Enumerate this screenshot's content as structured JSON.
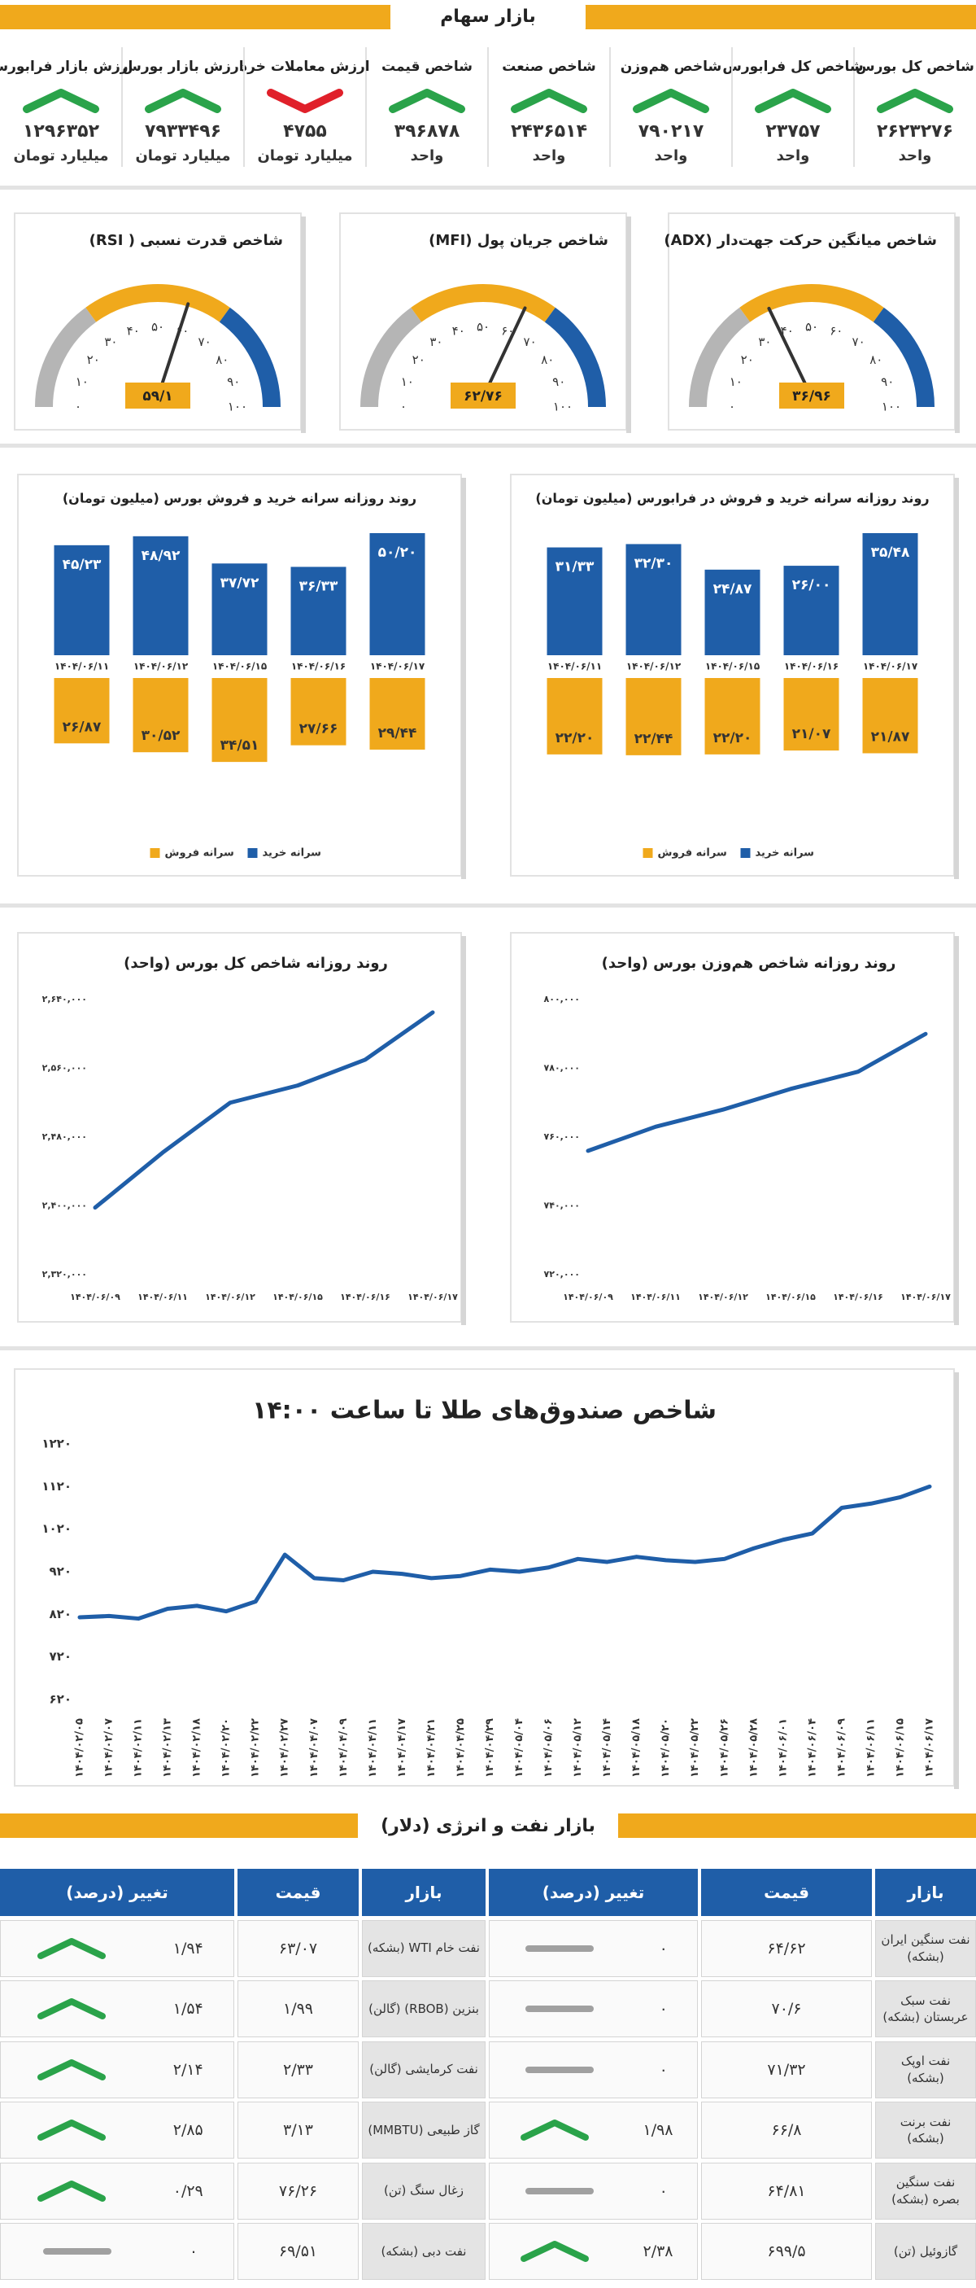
{
  "stock_market": {
    "title": "بازار سهام",
    "items": [
      {
        "title": "شاخص کل بورس",
        "value": "۲۶۲۳۲۷۶",
        "unit": "واحد",
        "trend": "up"
      },
      {
        "title": "شاخص کل فرابورس",
        "value": "۲۳۷۵۷",
        "unit": "واحد",
        "trend": "up"
      },
      {
        "title": "شاخص هم‌وزن",
        "value": "۷۹۰۲۱۷",
        "unit": "واحد",
        "trend": "up"
      },
      {
        "title": "شاخص صنعت",
        "value": "۲۴۳۶۵۱۴",
        "unit": "واحد",
        "trend": "up"
      },
      {
        "title": "شاخص قیمت",
        "value": "۳۹۶۸۷۸",
        "unit": "واحد",
        "trend": "up"
      },
      {
        "title": "ارزش معاملات خرد",
        "value": "۴۷۵۵",
        "unit": "میلیارد تومان",
        "trend": "down"
      },
      {
        "title": "ارزش بازار بورس",
        "value": "۷۹۳۳۴۹۶",
        "unit": "میلیارد تومان",
        "trend": "up"
      },
      {
        "title": "ارزش بازار فرابورس",
        "value": "۱۲۹۶۳۵۲",
        "unit": "میلیارد تومان",
        "trend": "up"
      }
    ]
  },
  "chart_data": [
    {
      "type": "gauge",
      "title": "شاخص میانگین حرکت جهت‌دار (ADX)",
      "value": 36.96,
      "value_label": "۳۶/۹۶",
      "color": "#f0a91c",
      "ylim": [
        0,
        100
      ],
      "yticks": [
        {
          "value": 0,
          "label": "۰"
        },
        {
          "value": 10,
          "label": "۱۰"
        },
        {
          "value": 20,
          "label": "۲۰"
        },
        {
          "value": 30,
          "label": "۳۰"
        },
        {
          "value": 40,
          "label": "۴۰"
        },
        {
          "value": 50,
          "label": "۵۰"
        },
        {
          "value": 60,
          "label": "۶۰"
        },
        {
          "value": 70,
          "label": "۷۰"
        },
        {
          "value": 80,
          "label": "۸۰"
        },
        {
          "value": 90,
          "label": "۹۰"
        },
        {
          "value": 100,
          "label": "۱۰۰"
        }
      ],
      "zones": [
        {
          "from": 0,
          "to": 30,
          "color": "#b5b5b5"
        },
        {
          "from": 30,
          "to": 70,
          "color": "#f0a91c"
        },
        {
          "from": 70,
          "to": 100,
          "color": "#1f5ea8"
        }
      ]
    },
    {
      "type": "gauge",
      "title": "شاخص جریان پول (MFI)",
      "value": 62.76,
      "value_label": "۶۲/۷۶",
      "color": "#f0a91c",
      "ylim": [
        0,
        100
      ],
      "yticks": [
        {
          "value": 0,
          "label": "۰"
        },
        {
          "value": 10,
          "label": "۱۰"
        },
        {
          "value": 20,
          "label": "۲۰"
        },
        {
          "value": 30,
          "label": "۳۰"
        },
        {
          "value": 40,
          "label": "۴۰"
        },
        {
          "value": 50,
          "label": "۵۰"
        },
        {
          "value": 60,
          "label": "۶۰"
        },
        {
          "value": 70,
          "label": "۷۰"
        },
        {
          "value": 80,
          "label": "۸۰"
        },
        {
          "value": 90,
          "label": "۹۰"
        },
        {
          "value": 100,
          "label": "۱۰۰"
        }
      ],
      "zones": [
        {
          "from": 0,
          "to": 30,
          "color": "#b5b5b5"
        },
        {
          "from": 30,
          "to": 70,
          "color": "#f0a91c"
        },
        {
          "from": 70,
          "to": 100,
          "color": "#1f5ea8"
        }
      ]
    },
    {
      "type": "gauge",
      "title": "شاخص قدرت نسبی ( RSI)",
      "value": 59.1,
      "value_label": "۵۹/۱",
      "color": "#f0a91c",
      "ylim": [
        0,
        100
      ],
      "yticks": [
        {
          "value": 0,
          "label": "۰"
        },
        {
          "value": 10,
          "label": "۱۰"
        },
        {
          "value": 20,
          "label": "۲۰"
        },
        {
          "value": 30,
          "label": "۳۰"
        },
        {
          "value": 40,
          "label": "۴۰"
        },
        {
          "value": 50,
          "label": "۵۰"
        },
        {
          "value": 60,
          "label": "۶۰"
        },
        {
          "value": 70,
          "label": "۷۰"
        },
        {
          "value": 80,
          "label": "۸۰"
        },
        {
          "value": 90,
          "label": "۹۰"
        },
        {
          "value": 100,
          "label": "۱۰۰"
        }
      ],
      "zones": [
        {
          "from": 0,
          "to": 30,
          "color": "#b5b5b5"
        },
        {
          "from": 30,
          "to": 70,
          "color": "#f0a91c"
        },
        {
          "from": 70,
          "to": 100,
          "color": "#1f5ea8"
        }
      ]
    },
    {
      "type": "bar",
      "title": "روند روزانه سرانه خرید و فروش در فرابورس (میلیون تومان)",
      "categories": [
        "۱۴۰۴/۰۶/۱۱",
        "۱۴۰۴/۰۶/۱۲",
        "۱۴۰۴/۰۶/۱۵",
        "۱۴۰۴/۰۶/۱۶",
        "۱۴۰۴/۰۶/۱۷"
      ],
      "series": [
        {
          "name": "سرانه خرید",
          "color": "#1f5ea8",
          "values": [
            31.33,
            32.3,
            24.87,
            26,
            35.48
          ],
          "value_labels": [
            "۳۱/۳۳",
            "۳۲/۳۰",
            "۲۴/۸۷",
            "۲۶/۰۰",
            "۳۵/۴۸"
          ]
        },
        {
          "name": "سرانه فروش",
          "color": "#f0a91c",
          "values": [
            22.2,
            22.44,
            22.2,
            21.07,
            21.87
          ],
          "value_labels": [
            "۲۲/۲۰",
            "۲۲/۴۴",
            "۲۲/۲۰",
            "۲۱/۰۷",
            "۲۱/۸۷"
          ]
        }
      ],
      "legend": "bottom"
    },
    {
      "type": "bar",
      "title": "روند روزانه سرانه خرید و فروش بورس (میلیون تومان)",
      "categories": [
        "۱۴۰۴/۰۶/۱۱",
        "۱۴۰۴/۰۶/۱۲",
        "۱۴۰۴/۰۶/۱۵",
        "۱۴۰۴/۰۶/۱۶",
        "۱۴۰۴/۰۶/۱۷"
      ],
      "series": [
        {
          "name": "سرانه خرید",
          "color": "#1f5ea8",
          "values": [
            45.23,
            48.92,
            37.72,
            36.33,
            50.2
          ],
          "value_labels": [
            "۴۵/۲۳",
            "۴۸/۹۲",
            "۳۷/۷۲",
            "۳۶/۳۳",
            "۵۰/۲۰"
          ]
        },
        {
          "name": "سرانه فروش",
          "color": "#f0a91c",
          "values": [
            26.87,
            30.52,
            34.51,
            27.66,
            29.44
          ],
          "value_labels": [
            "۲۶/۸۷",
            "۳۰/۵۲",
            "۳۴/۵۱",
            "۲۷/۶۶",
            "۲۹/۴۴"
          ]
        }
      ],
      "legend": "bottom"
    },
    {
      "type": "line",
      "title": "روند روزانه شاخص هم‌وزن بورس (واحد)",
      "color": "#1f5ea8",
      "categories": [
        "۱۴۰۴/۰۶/۰۹",
        "۱۴۰۴/۰۶/۱۱",
        "۱۴۰۴/۰۶/۱۲",
        "۱۴۰۴/۰۶/۱۵",
        "۱۴۰۴/۰۶/۱۶",
        "۱۴۰۴/۰۶/۱۷"
      ],
      "values": [
        756000,
        763000,
        768000,
        774000,
        779000,
        790000
      ],
      "ylim": [
        720000,
        800000
      ],
      "yticks": [
        {
          "value": 720000,
          "label": "۷۲۰,۰۰۰"
        },
        {
          "value": 740000,
          "label": "۷۴۰,۰۰۰"
        },
        {
          "value": 760000,
          "label": "۷۶۰,۰۰۰"
        },
        {
          "value": 780000,
          "label": "۷۸۰,۰۰۰"
        },
        {
          "value": 800000,
          "label": "۸۰۰,۰۰۰"
        }
      ]
    },
    {
      "type": "line",
      "title": "روند روزانه شاخص کل بورس (واحد)",
      "color": "#1f5ea8",
      "categories": [
        "۱۴۰۴/۰۶/۰۹",
        "۱۴۰۴/۰۶/۱۱",
        "۱۴۰۴/۰۶/۱۲",
        "۱۴۰۴/۰۶/۱۵",
        "۱۴۰۴/۰۶/۱۶",
        "۱۴۰۴/۰۶/۱۷"
      ],
      "values": [
        2398000,
        2462000,
        2520000,
        2540000,
        2570000,
        2625000
      ],
      "ylim": [
        2320000,
        2640000
      ],
      "yticks": [
        {
          "value": 2320000,
          "label": "۲,۳۲۰,۰۰۰"
        },
        {
          "value": 2400000,
          "label": "۲,۴۰۰,۰۰۰"
        },
        {
          "value": 2480000,
          "label": "۲,۴۸۰,۰۰۰"
        },
        {
          "value": 2560000,
          "label": "۲,۵۶۰,۰۰۰"
        },
        {
          "value": 2640000,
          "label": "۲,۶۴۰,۰۰۰"
        }
      ]
    },
    {
      "type": "line",
      "title": "شاخص صندوق‌های طلا تا ساعت ۱۴:۰۰",
      "color": "#1f5ea8",
      "categories": [
        "۱۴۰۴/۰۲/۰۵",
        "۱۴۰۴/۰۲/۰۷",
        "۱۴۰۴/۰۲/۱۱",
        "۱۴۰۴/۰۲/۱۳",
        "۱۴۰۴/۰۲/۱۸",
        "۱۴۰۴/۰۲/۲۰",
        "۱۴۰۴/۰۲/۲۲",
        "۱۴۰۴/۰۲/۲۷",
        "۱۴۰۴/۰۴/۰۷",
        "۱۴۰۴/۰۴/۰۹",
        "۱۴۰۴/۰۴/۱۱",
        "۱۴۰۴/۰۴/۱۷",
        "۱۴۰۴/۰۴/۲۱",
        "۱۴۰۴/۰۴/۲۵",
        "۱۴۰۴/۰۴/۲۹",
        "۱۴۰۴/۰۵/۰۴",
        "۱۴۰۴/۰۵/۰۶",
        "۱۴۰۴/۰۵/۱۲",
        "۱۴۰۴/۰۵/۱۴",
        "۱۴۰۴/۰۵/۱۸",
        "۱۴۰۴/۰۵/۲۰",
        "۱۴۰۴/۰۵/۲۲",
        "۱۴۰۴/۰۵/۲۶",
        "۱۴۰۴/۰۵/۲۸",
        "۱۴۰۴/۰۶/۰۱",
        "۱۴۰۴/۰۶/۰۴",
        "۱۴۰۴/۰۶/۰۹",
        "۱۴۰۴/۰۶/۱۱",
        "۱۴۰۴/۰۶/۱۵",
        "۱۴۰۴/۰۶/۱۷"
      ],
      "values": [
        813,
        816,
        810,
        833,
        840,
        827,
        850,
        960,
        905,
        900,
        920,
        915,
        905,
        910,
        925,
        920,
        930,
        950,
        943,
        955,
        947,
        943,
        950,
        975,
        995,
        1010,
        1070,
        1080,
        1095,
        1120
      ],
      "ylim": [
        620,
        1220
      ],
      "yticks": [
        {
          "value": 620,
          "label": "۶۲۰"
        },
        {
          "value": 720,
          "label": "۷۲۰"
        },
        {
          "value": 820,
          "label": "۸۲۰"
        },
        {
          "value": 920,
          "label": "۹۲۰"
        },
        {
          "value": 1020,
          "label": "۱۰۲۰"
        },
        {
          "value": 1120,
          "label": "۱۱۲۰"
        },
        {
          "value": 1220,
          "label": "۱۲۲۰"
        }
      ]
    }
  ],
  "energy_market": {
    "title": "بازار نفت و انرژی (دلار)",
    "tables": [
      {
        "columns": [
          "بازار",
          "قیمت",
          "تغییر (درصد)"
        ],
        "rows": [
          {
            "market": "نفت سنگین ایران (بشکه)",
            "price": "۶۴/۶۲",
            "change": "۰",
            "trend": "flat"
          },
          {
            "market": "نفت سبک عربستان (بشکه)",
            "price": "۷۰/۶",
            "change": "۰",
            "trend": "flat"
          },
          {
            "market": "نفت اوپک (بشکه)",
            "price": "۷۱/۳۲",
            "change": "۰",
            "trend": "flat"
          },
          {
            "market": "نفت برنت (بشکه)",
            "price": "۶۶/۸",
            "change": "۱/۹۸",
            "trend": "up"
          },
          {
            "market": "نفت سنگین بصره (بشکه)",
            "price": "۶۴/۸۱",
            "change": "۰",
            "trend": "flat"
          },
          {
            "market": "گازوئیل (تن)",
            "price": "۶۹۹/۵",
            "change": "۲/۳۸",
            "trend": "up"
          }
        ]
      },
      {
        "columns": [
          "بازار",
          "قیمت",
          "تغییر (درصد)"
        ],
        "rows": [
          {
            "market": "نفت خام WTI (بشکه)",
            "price": "۶۳/۰۷",
            "change": "۱/۹۴",
            "trend": "up"
          },
          {
            "market": "بنزین (RBOB) (گالن)",
            "price": "۱/۹۹",
            "change": "۱/۵۴",
            "trend": "up"
          },
          {
            "market": "نفت کرمایشی (گالن)",
            "price": "۲/۳۳",
            "change": "۲/۱۴",
            "trend": "up"
          },
          {
            "market": "گاز طبیعی (MMBTU)",
            "price": "۳/۱۳",
            "change": "۲/۸۵",
            "trend": "up"
          },
          {
            "market": "زغال سنگ (تن)",
            "price": "۷۶/۲۶",
            "change": "۰/۲۹",
            "trend": "up"
          },
          {
            "market": "نفت دبی (بشکه)",
            "price": "۶۹/۵۱",
            "change": "۰",
            "trend": "flat"
          }
        ]
      }
    ]
  }
}
